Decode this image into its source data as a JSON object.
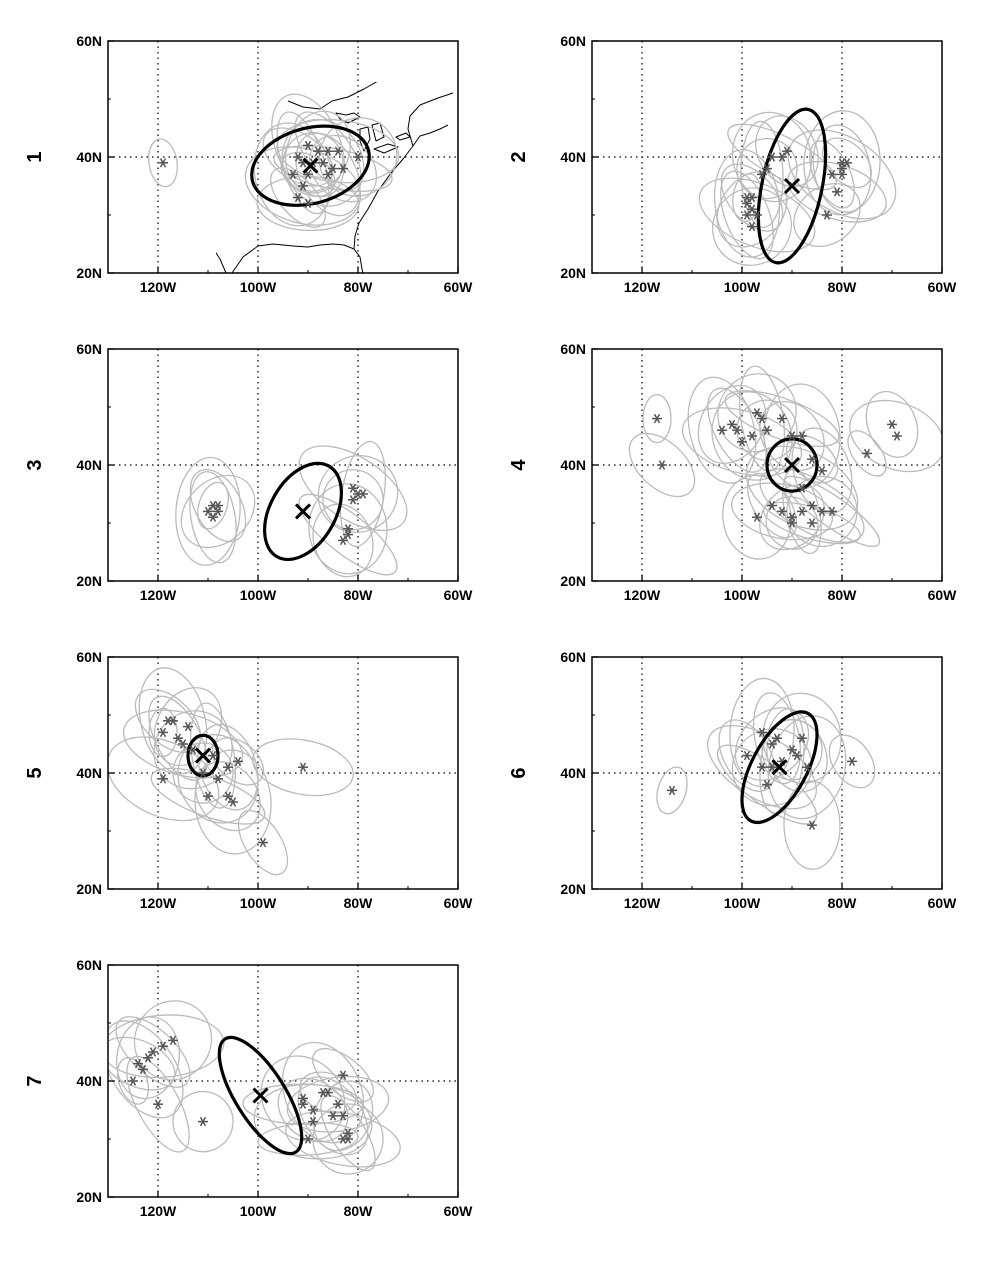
{
  "figure": {
    "axes": {
      "lon_range": [
        -130,
        -60
      ],
      "lat_range": [
        20,
        60
      ],
      "x_ticks": [
        {
          "value": -120,
          "label": "120W"
        },
        {
          "value": -100,
          "label": "100W"
        },
        {
          "value": -80,
          "label": "80W"
        },
        {
          "value": -60,
          "label": "60W"
        }
      ],
      "y_ticks": [
        {
          "value": 20,
          "label": "20N"
        },
        {
          "value": 40,
          "label": "40N"
        },
        {
          "value": 60,
          "label": "60N"
        }
      ],
      "gridlines": {
        "lons": [
          -120,
          -100,
          -80
        ],
        "lats": [
          40
        ],
        "style": "dotted"
      }
    },
    "colors": {
      "member_ellipse": "#bbbbbb",
      "member_star": "#555555",
      "mean": "#000000",
      "coast": "#000000"
    },
    "panels": [
      {
        "label": "1",
        "mean": {
          "center": [
            -89.5,
            38.5
          ],
          "rx": 12,
          "ry": 6.5,
          "angle": -15
        },
        "members": [
          [
            -119,
            39
          ],
          [
            -92,
            40
          ],
          [
            -90,
            42
          ],
          [
            -88,
            41
          ],
          [
            -86,
            41
          ],
          [
            -84,
            41
          ],
          [
            -80,
            40
          ],
          [
            -91,
            39
          ],
          [
            -89,
            39
          ],
          [
            -87,
            39
          ],
          [
            -85,
            38
          ],
          [
            -83,
            38
          ],
          [
            -93,
            37
          ],
          [
            -90,
            37
          ],
          [
            -86,
            37
          ],
          [
            -91,
            35
          ],
          [
            -92,
            33
          ],
          [
            -90,
            32
          ]
        ]
      },
      {
        "label": "2",
        "mean": {
          "center": [
            -90,
            35
          ],
          "rx": 6,
          "ry": 13.5,
          "angle": 12
        },
        "members": [
          [
            -99,
            33
          ],
          [
            -98,
            33
          ],
          [
            -99,
            32
          ],
          [
            -98,
            31
          ],
          [
            -99,
            30
          ],
          [
            -97,
            30
          ],
          [
            -98,
            28
          ],
          [
            -96,
            37
          ],
          [
            -95,
            38
          ],
          [
            -94,
            40
          ],
          [
            -92,
            40
          ],
          [
            -91,
            41
          ],
          [
            -80,
            39
          ],
          [
            -79,
            39
          ],
          [
            -80,
            38
          ],
          [
            -80,
            37
          ],
          [
            -82,
            37
          ],
          [
            -81,
            34
          ],
          [
            -83,
            30
          ]
        ]
      },
      {
        "label": "3",
        "mean": {
          "center": [
            -91,
            32
          ],
          "rx": 6.5,
          "ry": 9,
          "angle": 30
        },
        "members": [
          [
            -109,
            33
          ],
          [
            -108,
            33
          ],
          [
            -110,
            32
          ],
          [
            -108,
            32
          ],
          [
            -109,
            31
          ],
          [
            -81,
            36
          ],
          [
            -80,
            35
          ],
          [
            -79,
            35
          ],
          [
            -81,
            34
          ],
          [
            -82,
            29
          ],
          [
            -82,
            28
          ],
          [
            -83,
            27
          ]
        ]
      },
      {
        "label": "4",
        "mean": {
          "center": [
            -90,
            40
          ],
          "rx": 5,
          "ry": 4.5,
          "angle": 0
        },
        "members": [
          [
            -117,
            48
          ],
          [
            -116,
            40
          ],
          [
            -104,
            46
          ],
          [
            -102,
            47
          ],
          [
            -101,
            46
          ],
          [
            -100,
            44
          ],
          [
            -97,
            49
          ],
          [
            -96,
            48
          ],
          [
            -95,
            46
          ],
          [
            -98,
            45
          ],
          [
            -92,
            48
          ],
          [
            -90,
            45
          ],
          [
            -88,
            45
          ],
          [
            -86,
            41
          ],
          [
            -84,
            39
          ],
          [
            -88,
            36
          ],
          [
            -94,
            33
          ],
          [
            -92,
            32
          ],
          [
            -90,
            31
          ],
          [
            -88,
            32
          ],
          [
            -86,
            33
          ],
          [
            -84,
            32
          ],
          [
            -86,
            30
          ],
          [
            -90,
            30
          ],
          [
            -97,
            31
          ],
          [
            -82,
            32
          ],
          [
            -70,
            47
          ],
          [
            -69,
            45
          ],
          [
            -75,
            42
          ]
        ]
      },
      {
        "label": "5",
        "mean": {
          "center": [
            -111,
            43
          ],
          "rx": 3,
          "ry": 3.5,
          "angle": 0
        },
        "members": [
          [
            -119,
            47
          ],
          [
            -118,
            49
          ],
          [
            -117,
            49
          ],
          [
            -114,
            48
          ],
          [
            -116,
            46
          ],
          [
            -115,
            45
          ],
          [
            -113,
            44
          ],
          [
            -109,
            43
          ],
          [
            -111,
            40
          ],
          [
            -108,
            39
          ],
          [
            -110,
            36
          ],
          [
            -106,
            36
          ],
          [
            -105,
            35
          ],
          [
            -104,
            42
          ],
          [
            -106,
            41
          ],
          [
            -119,
            39
          ],
          [
            -99,
            28
          ],
          [
            -91,
            41
          ]
        ]
      },
      {
        "label": "6",
        "mean": {
          "center": [
            -92.5,
            41
          ],
          "rx": 5.5,
          "ry": 10.5,
          "angle": 28
        },
        "members": [
          [
            -114,
            37
          ],
          [
            -99,
            43
          ],
          [
            -96,
            47
          ],
          [
            -94,
            45
          ],
          [
            -93,
            46
          ],
          [
            -96,
            41
          ],
          [
            -94,
            41
          ],
          [
            -92,
            42
          ],
          [
            -90,
            44
          ],
          [
            -88,
            46
          ],
          [
            -95,
            38
          ],
          [
            -89,
            43
          ],
          [
            -87,
            41
          ],
          [
            -78,
            42
          ],
          [
            -86,
            31
          ]
        ]
      },
      {
        "label": "7",
        "mean": {
          "center": [
            -99.5,
            37.5
          ],
          "rx": 5,
          "ry": 11.5,
          "angle": -32
        },
        "members": [
          [
            -125,
            40
          ],
          [
            -124,
            43
          ],
          [
            -123,
            42
          ],
          [
            -122,
            44
          ],
          [
            -121,
            45
          ],
          [
            -119,
            46
          ],
          [
            -117,
            47
          ],
          [
            -120,
            36
          ],
          [
            -111,
            33
          ],
          [
            -91,
            37
          ],
          [
            -91,
            36
          ],
          [
            -89,
            35
          ],
          [
            -87,
            38
          ],
          [
            -86,
            38
          ],
          [
            -85,
            34
          ],
          [
            -89,
            33
          ],
          [
            -83,
            41
          ],
          [
            -84,
            36
          ],
          [
            -83,
            34
          ],
          [
            -82,
            31
          ],
          [
            -83,
            30
          ],
          [
            -82,
            30
          ],
          [
            -90,
            30
          ]
        ]
      }
    ]
  }
}
